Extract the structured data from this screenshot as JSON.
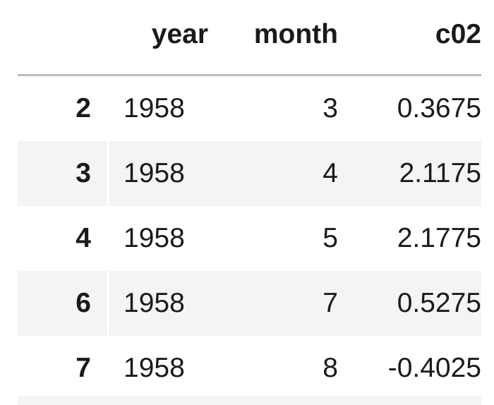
{
  "table": {
    "columns": [
      "",
      "year",
      "month",
      "c02"
    ],
    "rows": [
      {
        "index": "2",
        "year": "1958",
        "month": "3",
        "c02": "0.3675"
      },
      {
        "index": "3",
        "year": "1958",
        "month": "4",
        "c02": "2.1175"
      },
      {
        "index": "4",
        "year": "1958",
        "month": "5",
        "c02": "2.1775"
      },
      {
        "index": "6",
        "year": "1958",
        "month": "7",
        "c02": "0.5275"
      },
      {
        "index": "7",
        "year": "1958",
        "month": "8",
        "c02": "-0.4025"
      }
    ]
  },
  "colors": {
    "stripe": "#f4f4f4",
    "header_rule": "#bdbdbd",
    "text": "#1a1a1a"
  }
}
